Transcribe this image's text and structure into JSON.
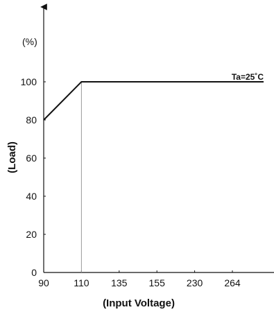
{
  "chart_data": {
    "type": "line",
    "title": "",
    "xlabel": "(Input Voltage)",
    "ylabel": "(Load)",
    "y_unit": "(%)",
    "categories": [
      "90",
      "110",
      "135",
      "155",
      "230",
      "264"
    ],
    "ylim": [
      0,
      100
    ],
    "yticks": [
      "0",
      "20",
      "40",
      "60",
      "80",
      "100"
    ],
    "series": [
      {
        "x": [
          "90",
          "110",
          "264"
        ],
        "values": [
          80,
          100,
          100
        ]
      }
    ],
    "reference_line": {
      "x": "110"
    },
    "annotation": "Ta=25˚C",
    "grid": false
  }
}
